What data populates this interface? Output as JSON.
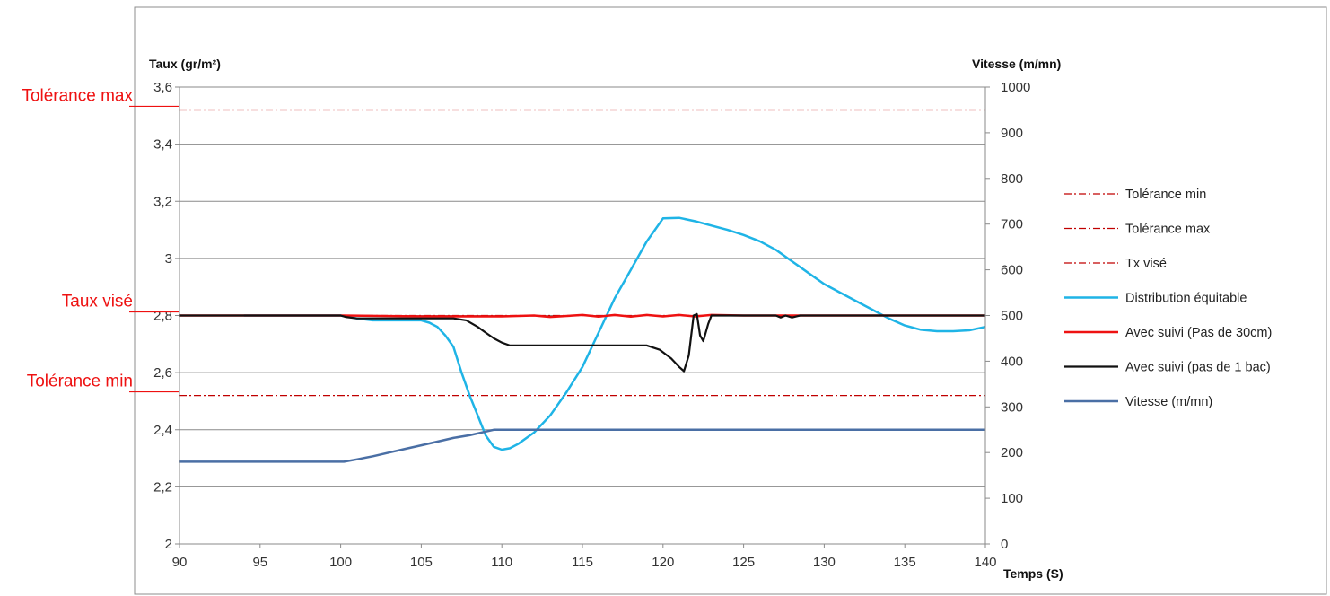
{
  "chart_data": {
    "type": "line",
    "title": "",
    "x_axis": {
      "label": "Temps (S)",
      "min": 90,
      "max": 140,
      "ticks": [
        90,
        95,
        100,
        105,
        110,
        115,
        120,
        125,
        130,
        135,
        140
      ]
    },
    "y_axis_left": {
      "label": "Taux (gr/m²)",
      "min": 2,
      "max": 3.6,
      "ticks": [
        2,
        2.2,
        2.4,
        2.6,
        2.8,
        3,
        3.2,
        3.4,
        3.6
      ],
      "tick_labels": [
        "2",
        "2,2",
        "2,4",
        "2,6",
        "2,8",
        "3",
        "3,2",
        "3,4",
        "3,6"
      ]
    },
    "y_axis_right": {
      "label": "Vitesse (m/mn)",
      "min": 0,
      "max": 1000,
      "ticks": [
        0,
        100,
        200,
        300,
        400,
        500,
        600,
        700,
        800,
        900,
        1000
      ],
      "tick_labels": [
        "0",
        "100",
        "200",
        "300",
        "400",
        "500",
        "600",
        "700",
        "800",
        "900",
        "1000"
      ]
    },
    "grid": "horizontal",
    "legend_position": "right",
    "annotations": [
      {
        "text": "Tolérance max",
        "y": 3.52,
        "color": "#ee1111"
      },
      {
        "text": "Taux visé",
        "y": 2.8,
        "color": "#ee1111"
      },
      {
        "text": "Tolérance min",
        "y": 2.52,
        "color": "#ee1111"
      }
    ],
    "series": [
      {
        "name": "Tolérance min",
        "axis": "left",
        "style": "dashdot",
        "color": "#c00000",
        "width": 1.3,
        "x": [
          90,
          140
        ],
        "y": [
          2.52,
          2.52
        ]
      },
      {
        "name": "Tolérance max",
        "axis": "left",
        "style": "dashdot",
        "color": "#c00000",
        "width": 1.3,
        "x": [
          90,
          140
        ],
        "y": [
          3.52,
          3.52
        ]
      },
      {
        "name": "Tx visé",
        "axis": "left",
        "style": "dashdot",
        "color": "#c00000",
        "width": 1.3,
        "x": [
          90,
          140
        ],
        "y": [
          2.8,
          2.8
        ]
      },
      {
        "name": "Distribution équitable",
        "axis": "left",
        "style": "solid",
        "color": "#1fb4e6",
        "width": 2.5,
        "x": [
          94,
          100,
          101,
          102,
          104,
          105,
          105.5,
          106,
          106.5,
          107,
          107.5,
          108,
          108.5,
          109,
          109.5,
          110,
          110.5,
          111,
          112,
          113,
          114,
          115,
          116,
          117,
          118,
          119,
          119.5,
          120,
          121,
          122,
          123,
          124,
          125,
          126,
          127,
          128,
          129,
          130,
          131,
          132,
          133,
          134,
          135,
          136,
          137,
          138,
          139,
          140
        ],
        "y": [
          2.8,
          2.8,
          2.79,
          2.783,
          2.783,
          2.783,
          2.775,
          2.76,
          2.73,
          2.69,
          2.6,
          2.52,
          2.45,
          2.38,
          2.34,
          2.33,
          2.335,
          2.35,
          2.39,
          2.45,
          2.53,
          2.62,
          2.74,
          2.86,
          2.96,
          3.06,
          3.1,
          3.14,
          3.142,
          3.13,
          3.115,
          3.1,
          3.082,
          3.06,
          3.03,
          2.99,
          2.95,
          2.91,
          2.88,
          2.85,
          2.82,
          2.79,
          2.765,
          2.75,
          2.745,
          2.745,
          2.748,
          2.76
        ]
      },
      {
        "name": "Avec suivi (Pas de 30cm)",
        "axis": "left",
        "style": "solid",
        "color": "#ee1111",
        "width": 2.5,
        "x": [
          90,
          100,
          105,
          110,
          112,
          113,
          115,
          116,
          117,
          118,
          119,
          120,
          121,
          122,
          123,
          125,
          128,
          130,
          135,
          140
        ],
        "y": [
          2.8,
          2.8,
          2.797,
          2.797,
          2.8,
          2.795,
          2.802,
          2.796,
          2.802,
          2.796,
          2.802,
          2.797,
          2.802,
          2.797,
          2.802,
          2.8,
          2.8,
          2.8,
          2.8,
          2.8
        ]
      },
      {
        "name": "Avec suivi (pas de 1 bac)",
        "axis": "left",
        "style": "solid",
        "color": "#111111",
        "width": 2.2,
        "x": [
          90,
          100,
          100.3,
          101,
          107,
          107.8,
          108.5,
          109,
          109.5,
          110,
          110.5,
          111,
          112,
          119,
          119.8,
          120.5,
          121,
          121.3,
          121.6,
          121.9,
          122.1,
          122.3,
          122.5,
          122.8,
          123,
          124,
          127,
          127.3,
          127.6,
          128,
          128.5,
          130,
          135,
          140
        ],
        "y": [
          2.8,
          2.8,
          2.795,
          2.79,
          2.79,
          2.783,
          2.76,
          2.74,
          2.72,
          2.705,
          2.695,
          2.695,
          2.695,
          2.695,
          2.68,
          2.65,
          2.62,
          2.605,
          2.66,
          2.8,
          2.805,
          2.73,
          2.71,
          2.77,
          2.8,
          2.8,
          2.8,
          2.793,
          2.8,
          2.793,
          2.8,
          2.8,
          2.8,
          2.8
        ]
      },
      {
        "name": "Vitesse (m/mn)",
        "axis": "right",
        "style": "solid",
        "color": "#4a6fa5",
        "width": 2.5,
        "x": [
          90,
          100.2,
          101,
          102,
          103,
          104,
          105,
          106,
          107,
          108,
          109,
          109.5,
          110,
          112,
          115,
          120,
          125,
          130,
          135,
          140
        ],
        "y": [
          180,
          180,
          185,
          192,
          200,
          208,
          216,
          224,
          232,
          238,
          246,
          250,
          250,
          250,
          250,
          250,
          250,
          250,
          250,
          250
        ]
      }
    ]
  }
}
